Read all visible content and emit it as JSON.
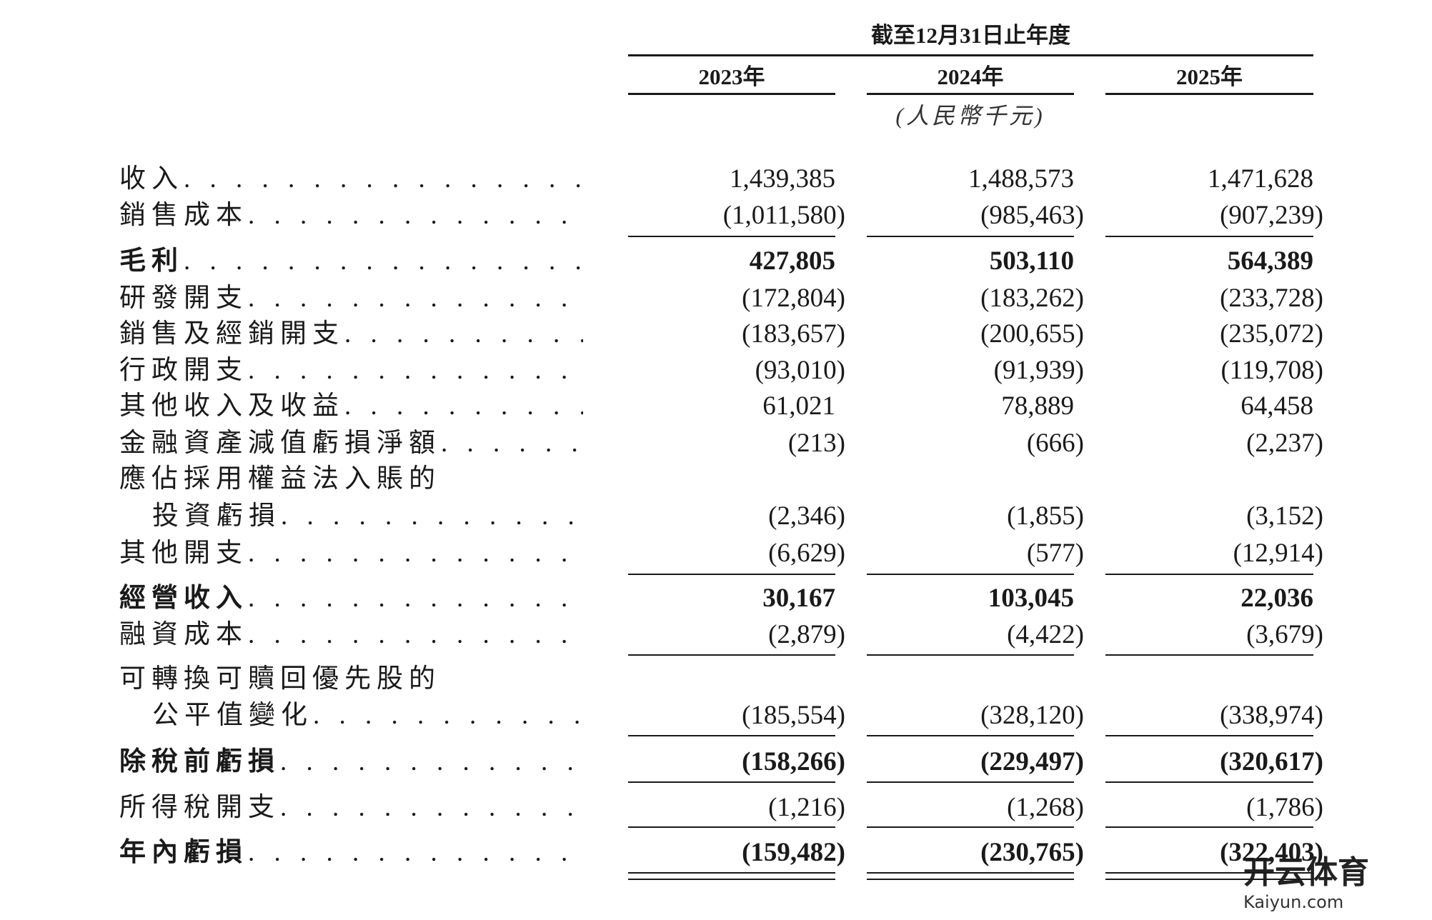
{
  "header": {
    "period": "截至12月31日止年度",
    "years": [
      "2023年",
      "2024年",
      "2025年"
    ],
    "unit": "(人民幣千元)"
  },
  "table": {
    "rows": [
      {
        "label": [
          "收入"
        ],
        "values": [
          "1,439,385",
          "1,488,573",
          "1,471,628"
        ]
      },
      {
        "label": [
          "銷售成本"
        ],
        "values": [
          "(1,011,580)",
          "(985,463)",
          "(907,239)"
        ],
        "rule": "single"
      },
      {
        "label": [
          "毛利"
        ],
        "values": [
          "427,805",
          "503,110",
          "564,389"
        ],
        "bold": true
      },
      {
        "label": [
          "研發開支"
        ],
        "values": [
          "(172,804)",
          "(183,262)",
          "(233,728)"
        ]
      },
      {
        "label": [
          "銷售及經銷開支"
        ],
        "values": [
          "(183,657)",
          "(200,655)",
          "(235,072)"
        ]
      },
      {
        "label": [
          "行政開支"
        ],
        "values": [
          "(93,010)",
          "(91,939)",
          "(119,708)"
        ]
      },
      {
        "label": [
          "其他收入及收益"
        ],
        "values": [
          "61,021",
          "78,889",
          "64,458"
        ]
      },
      {
        "label": [
          "金融資產減值虧損淨額"
        ],
        "values": [
          "(213)",
          "(666)",
          "(2,237)"
        ]
      },
      {
        "label": [
          "應佔採用權益法入賬的",
          "投資虧損"
        ],
        "values": [
          "(2,346)",
          "(1,855)",
          "(3,152)"
        ]
      },
      {
        "label": [
          "其他開支"
        ],
        "values": [
          "(6,629)",
          "(577)",
          "(12,914)"
        ],
        "rule": "single"
      },
      {
        "label": [
          "經營收入"
        ],
        "values": [
          "30,167",
          "103,045",
          "22,036"
        ],
        "bold": true
      },
      {
        "label": [
          "融資成本"
        ],
        "values": [
          "(2,879)",
          "(4,422)",
          "(3,679)"
        ],
        "rule": "single"
      },
      {
        "label": [
          "可轉換可贖回優先股的",
          "公平值變化"
        ],
        "values": [
          "(185,554)",
          "(328,120)",
          "(338,974)"
        ],
        "rule": "single"
      },
      {
        "label": [
          "除稅前虧損"
        ],
        "values": [
          "(158,266)",
          "(229,497)",
          "(320,617)"
        ],
        "bold": true,
        "rule": "single"
      },
      {
        "label": [
          "所得稅開支"
        ],
        "values": [
          "(1,216)",
          "(1,268)",
          "(1,786)"
        ],
        "rule": "single"
      },
      {
        "label": [
          "年內虧損"
        ],
        "values": [
          "(159,482)",
          "(230,765)",
          "(322,403)"
        ],
        "bold": true,
        "rule": "double"
      }
    ]
  },
  "watermark": {
    "brand": "开云体育",
    "site": "Kaiyun.com"
  }
}
